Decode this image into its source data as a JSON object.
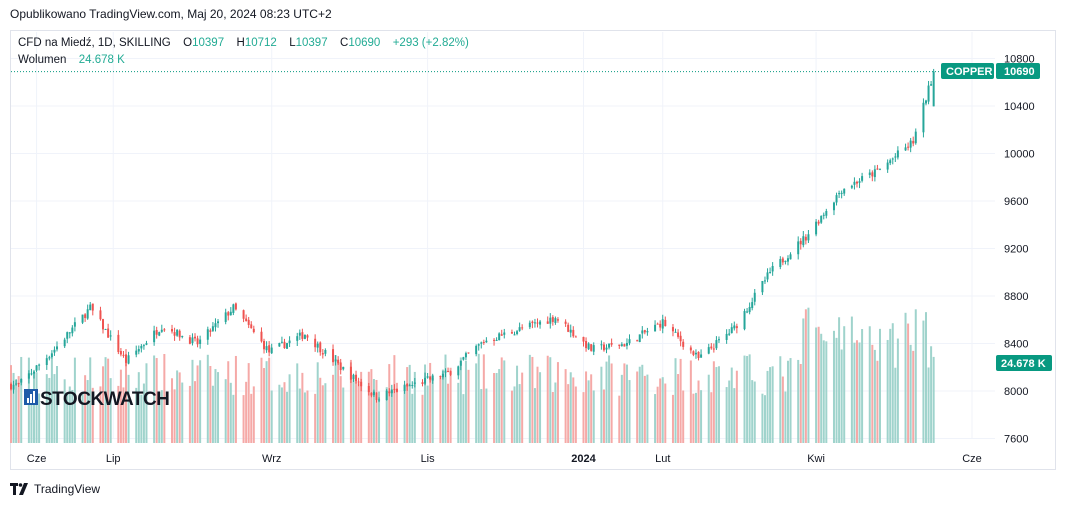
{
  "header": {
    "published": "Opublikowano TradingView.com, Maj 20, 2024 08:23 UTC+2"
  },
  "legend": {
    "symbol": "CFD na Miedź, 1D, SKILLING",
    "o_label": "O",
    "o_value": "10397",
    "h_label": "H",
    "h_value": "10712",
    "l_label": "L",
    "l_value": "10397",
    "c_label": "C",
    "c_value": "10690",
    "change": "+293 (+2.82%)",
    "volume_label": "Wolumen",
    "volume_value": "24.678 K"
  },
  "price_tag": {
    "symbol": "COPPER",
    "value": "10690"
  },
  "volume_tag": {
    "value": "24.678 K"
  },
  "watermark": "STOCKWATCH",
  "footer": {
    "brand": "TradingView"
  },
  "colors": {
    "up": "#26a69a",
    "down": "#ef5350",
    "up_vol": "#9fd3cc",
    "down_vol": "#f5a9a7",
    "tag": "#089981",
    "grid": "#f0f3fa"
  },
  "chart_data": {
    "type": "candlestick",
    "y_ticks": [
      10800,
      10400,
      10000,
      9600,
      9200,
      8800,
      8400,
      8000,
      7600
    ],
    "ylim": [
      7600,
      10800
    ],
    "x_labels": [
      "Cze",
      "Lip",
      "Wrz",
      "Lis",
      "2024",
      "Lut",
      "Kwi",
      "Cze"
    ],
    "last_close": 10690,
    "last_volume_k": 24.678,
    "close_path": [
      {
        "date": "2023-05-25",
        "close": 8050
      },
      {
        "date": "2023-06-08",
        "close": 8350
      },
      {
        "date": "2023-06-22",
        "close": 8700
      },
      {
        "date": "2023-07-06",
        "close": 8250
      },
      {
        "date": "2023-07-20",
        "close": 8550
      },
      {
        "date": "2023-08-03",
        "close": 8400
      },
      {
        "date": "2023-08-17",
        "close": 8700
      },
      {
        "date": "2023-08-31",
        "close": 8330
      },
      {
        "date": "2023-09-14",
        "close": 8480
      },
      {
        "date": "2023-09-28",
        "close": 8200
      },
      {
        "date": "2023-10-12",
        "close": 7950
      },
      {
        "date": "2023-10-26",
        "close": 8050
      },
      {
        "date": "2023-11-09",
        "close": 8150
      },
      {
        "date": "2023-11-23",
        "close": 8420
      },
      {
        "date": "2023-12-07",
        "close": 8520
      },
      {
        "date": "2023-12-21",
        "close": 8620
      },
      {
        "date": "2024-01-04",
        "close": 8350
      },
      {
        "date": "2024-01-18",
        "close": 8400
      },
      {
        "date": "2024-02-01",
        "close": 8580
      },
      {
        "date": "2024-02-15",
        "close": 8270
      },
      {
        "date": "2024-02-29",
        "close": 8530
      },
      {
        "date": "2024-03-14",
        "close": 9000
      },
      {
        "date": "2024-03-28",
        "close": 9300
      },
      {
        "date": "2024-04-11",
        "close": 9700
      },
      {
        "date": "2024-04-25",
        "close": 9850
      },
      {
        "date": "2024-05-09",
        "close": 10100
      },
      {
        "date": "2024-05-17",
        "close": 10690
      }
    ]
  }
}
